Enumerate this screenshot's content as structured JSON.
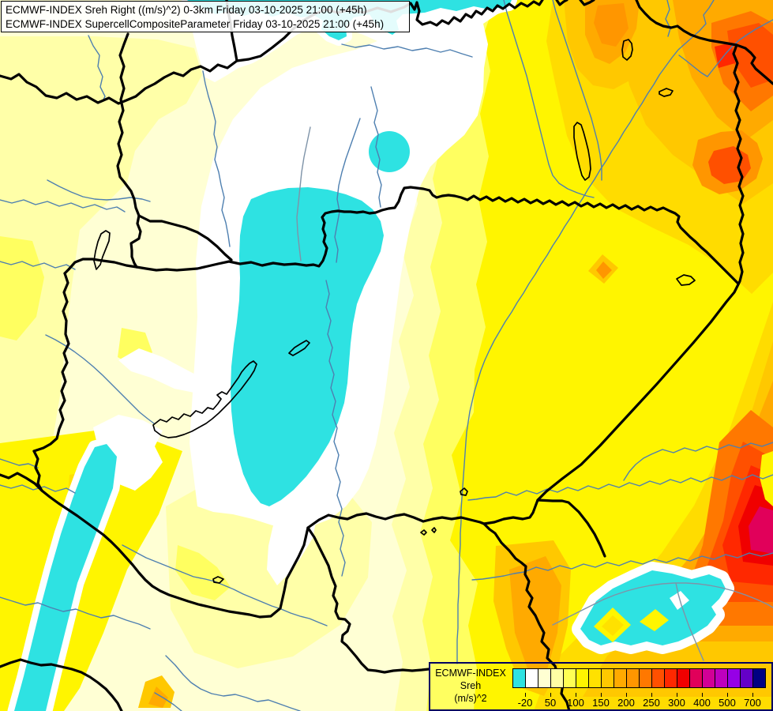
{
  "header": {
    "line1": "ECMWF-INDEX Sreh Right ((m/s)^2) 0-3km Friday 03-10-2025 21:00 (+45h)",
    "line2": "ECMWF-INDEX SupercellCompositeParameter Friday 03-10-2025 21:00 (+45h)"
  },
  "legend": {
    "title_lines": [
      "ECMWF-INDEX",
      "Sreh",
      "(m/s)^2"
    ],
    "tick_labels": [
      "-20",
      "50",
      "100",
      "150",
      "200",
      "250",
      "300",
      "400",
      "500",
      "700"
    ],
    "cell_colors": [
      "#2EE2E2",
      "#FFFFFF",
      "#FFFFD2",
      "#FFFFA4",
      "#FFFF54",
      "#FFF500",
      "#FFE100",
      "#FFC800",
      "#FFAA00",
      "#FF9600",
      "#FF7800",
      "#FF5000",
      "#FF2800",
      "#F00000",
      "#E1005A",
      "#D20096",
      "#BE00BE",
      "#9600E6",
      "#6400C8",
      "#000082"
    ],
    "frame_color": "#000060"
  },
  "map": {
    "base_color": "#FFFFD4",
    "negative_region_color": "#2EE2E2",
    "river_color": "#4E7FB0",
    "country_border_color": "#000000"
  }
}
